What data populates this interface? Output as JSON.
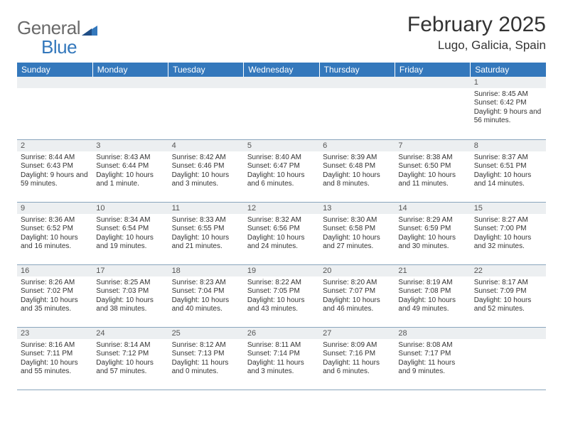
{
  "brand": {
    "part1": "General",
    "part2": "Blue"
  },
  "title": "February 2025",
  "location": "Lugo, Galicia, Spain",
  "colors": {
    "header_bg": "#3478bc",
    "header_text": "#ffffff",
    "daynum_bg": "#eceff1",
    "rule": "#8aa5bd",
    "body_text": "#333333",
    "logo_gray": "#6a6a6a",
    "logo_blue": "#3478bc"
  },
  "weekdays": [
    "Sunday",
    "Monday",
    "Tuesday",
    "Wednesday",
    "Thursday",
    "Friday",
    "Saturday"
  ],
  "weeks": [
    [
      {
        "n": "",
        "empty": true
      },
      {
        "n": "",
        "empty": true
      },
      {
        "n": "",
        "empty": true
      },
      {
        "n": "",
        "empty": true
      },
      {
        "n": "",
        "empty": true
      },
      {
        "n": "",
        "empty": true
      },
      {
        "n": "1",
        "sr": "Sunrise: 8:45 AM",
        "ss": "Sunset: 6:42 PM",
        "dl": "Daylight: 9 hours and 56 minutes."
      }
    ],
    [
      {
        "n": "2",
        "sr": "Sunrise: 8:44 AM",
        "ss": "Sunset: 6:43 PM",
        "dl": "Daylight: 9 hours and 59 minutes."
      },
      {
        "n": "3",
        "sr": "Sunrise: 8:43 AM",
        "ss": "Sunset: 6:44 PM",
        "dl": "Daylight: 10 hours and 1 minute."
      },
      {
        "n": "4",
        "sr": "Sunrise: 8:42 AM",
        "ss": "Sunset: 6:46 PM",
        "dl": "Daylight: 10 hours and 3 minutes."
      },
      {
        "n": "5",
        "sr": "Sunrise: 8:40 AM",
        "ss": "Sunset: 6:47 PM",
        "dl": "Daylight: 10 hours and 6 minutes."
      },
      {
        "n": "6",
        "sr": "Sunrise: 8:39 AM",
        "ss": "Sunset: 6:48 PM",
        "dl": "Daylight: 10 hours and 8 minutes."
      },
      {
        "n": "7",
        "sr": "Sunrise: 8:38 AM",
        "ss": "Sunset: 6:50 PM",
        "dl": "Daylight: 10 hours and 11 minutes."
      },
      {
        "n": "8",
        "sr": "Sunrise: 8:37 AM",
        "ss": "Sunset: 6:51 PM",
        "dl": "Daylight: 10 hours and 14 minutes."
      }
    ],
    [
      {
        "n": "9",
        "sr": "Sunrise: 8:36 AM",
        "ss": "Sunset: 6:52 PM",
        "dl": "Daylight: 10 hours and 16 minutes."
      },
      {
        "n": "10",
        "sr": "Sunrise: 8:34 AM",
        "ss": "Sunset: 6:54 PM",
        "dl": "Daylight: 10 hours and 19 minutes."
      },
      {
        "n": "11",
        "sr": "Sunrise: 8:33 AM",
        "ss": "Sunset: 6:55 PM",
        "dl": "Daylight: 10 hours and 21 minutes."
      },
      {
        "n": "12",
        "sr": "Sunrise: 8:32 AM",
        "ss": "Sunset: 6:56 PM",
        "dl": "Daylight: 10 hours and 24 minutes."
      },
      {
        "n": "13",
        "sr": "Sunrise: 8:30 AM",
        "ss": "Sunset: 6:58 PM",
        "dl": "Daylight: 10 hours and 27 minutes."
      },
      {
        "n": "14",
        "sr": "Sunrise: 8:29 AM",
        "ss": "Sunset: 6:59 PM",
        "dl": "Daylight: 10 hours and 30 minutes."
      },
      {
        "n": "15",
        "sr": "Sunrise: 8:27 AM",
        "ss": "Sunset: 7:00 PM",
        "dl": "Daylight: 10 hours and 32 minutes."
      }
    ],
    [
      {
        "n": "16",
        "sr": "Sunrise: 8:26 AM",
        "ss": "Sunset: 7:02 PM",
        "dl": "Daylight: 10 hours and 35 minutes."
      },
      {
        "n": "17",
        "sr": "Sunrise: 8:25 AM",
        "ss": "Sunset: 7:03 PM",
        "dl": "Daylight: 10 hours and 38 minutes."
      },
      {
        "n": "18",
        "sr": "Sunrise: 8:23 AM",
        "ss": "Sunset: 7:04 PM",
        "dl": "Daylight: 10 hours and 40 minutes."
      },
      {
        "n": "19",
        "sr": "Sunrise: 8:22 AM",
        "ss": "Sunset: 7:05 PM",
        "dl": "Daylight: 10 hours and 43 minutes."
      },
      {
        "n": "20",
        "sr": "Sunrise: 8:20 AM",
        "ss": "Sunset: 7:07 PM",
        "dl": "Daylight: 10 hours and 46 minutes."
      },
      {
        "n": "21",
        "sr": "Sunrise: 8:19 AM",
        "ss": "Sunset: 7:08 PM",
        "dl": "Daylight: 10 hours and 49 minutes."
      },
      {
        "n": "22",
        "sr": "Sunrise: 8:17 AM",
        "ss": "Sunset: 7:09 PM",
        "dl": "Daylight: 10 hours and 52 minutes."
      }
    ],
    [
      {
        "n": "23",
        "sr": "Sunrise: 8:16 AM",
        "ss": "Sunset: 7:11 PM",
        "dl": "Daylight: 10 hours and 55 minutes."
      },
      {
        "n": "24",
        "sr": "Sunrise: 8:14 AM",
        "ss": "Sunset: 7:12 PM",
        "dl": "Daylight: 10 hours and 57 minutes."
      },
      {
        "n": "25",
        "sr": "Sunrise: 8:12 AM",
        "ss": "Sunset: 7:13 PM",
        "dl": "Daylight: 11 hours and 0 minutes."
      },
      {
        "n": "26",
        "sr": "Sunrise: 8:11 AM",
        "ss": "Sunset: 7:14 PM",
        "dl": "Daylight: 11 hours and 3 minutes."
      },
      {
        "n": "27",
        "sr": "Sunrise: 8:09 AM",
        "ss": "Sunset: 7:16 PM",
        "dl": "Daylight: 11 hours and 6 minutes."
      },
      {
        "n": "28",
        "sr": "Sunrise: 8:08 AM",
        "ss": "Sunset: 7:17 PM",
        "dl": "Daylight: 11 hours and 9 minutes."
      },
      {
        "n": "",
        "empty": true
      }
    ]
  ]
}
